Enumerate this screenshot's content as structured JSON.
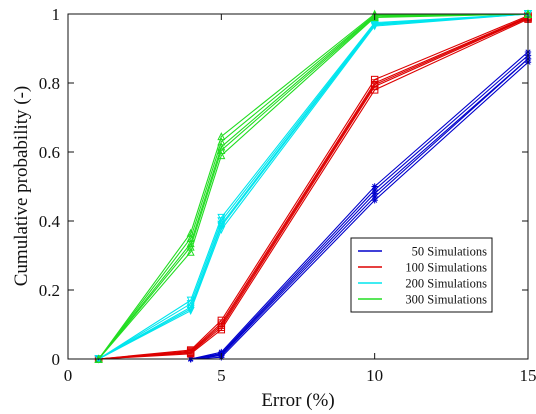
{
  "chart_data": {
    "type": "line",
    "title": "",
    "xlabel": "Error (%)",
    "ylabel": "Cumulative probability (-)",
    "xlim": [
      0,
      15
    ],
    "ylim": [
      0,
      1
    ],
    "xticks": [
      0,
      5,
      10,
      15
    ],
    "yticks": [
      0,
      0.2,
      0.4,
      0.6,
      0.8,
      1
    ],
    "ytick_labels": [
      "0",
      "0.2",
      "0.4",
      "0.6",
      "0.8",
      "1"
    ],
    "grid": false,
    "legend_position": "lower-right",
    "x": [
      1,
      4,
      5,
      10,
      15
    ],
    "series": [
      {
        "name": "50 Simulations",
        "color": "#0000cc",
        "marker": "star",
        "runs": [
          [
            0,
            0,
            0.005,
            0.46,
            0.86
          ],
          [
            0,
            0,
            0.01,
            0.47,
            0.87
          ],
          [
            0,
            0,
            0.013,
            0.48,
            0.87
          ],
          [
            0,
            0,
            0.016,
            0.49,
            0.88
          ],
          [
            0,
            0,
            0.02,
            0.5,
            0.89
          ]
        ]
      },
      {
        "name": "100 Simulations",
        "color": "#dd0000",
        "marker": "square",
        "runs": [
          [
            0,
            0.015,
            0.085,
            0.78,
            0.985
          ],
          [
            0,
            0.018,
            0.092,
            0.79,
            0.988
          ],
          [
            0,
            0.02,
            0.098,
            0.795,
            0.99
          ],
          [
            0,
            0.023,
            0.104,
            0.8,
            0.992
          ],
          [
            0,
            0.026,
            0.112,
            0.81,
            0.995
          ]
        ]
      },
      {
        "name": "200 Simulations",
        "color": "#00e5ee",
        "marker": "triangle-down",
        "runs": [
          [
            0,
            0.14,
            0.375,
            0.965,
            1
          ],
          [
            0,
            0.145,
            0.385,
            0.968,
            1
          ],
          [
            0,
            0.15,
            0.39,
            0.97,
            1
          ],
          [
            0,
            0.16,
            0.4,
            0.972,
            1
          ],
          [
            0,
            0.17,
            0.41,
            0.975,
            1
          ]
        ]
      },
      {
        "name": "300 Simulations",
        "color": "#22dd22",
        "marker": "triangle-up",
        "runs": [
          [
            0,
            0.31,
            0.59,
            0.99,
            1
          ],
          [
            0,
            0.325,
            0.605,
            0.992,
            1
          ],
          [
            0,
            0.335,
            0.615,
            0.995,
            1
          ],
          [
            0,
            0.35,
            0.63,
            0.997,
            1
          ],
          [
            0,
            0.365,
            0.645,
            1,
            1
          ]
        ]
      }
    ]
  }
}
